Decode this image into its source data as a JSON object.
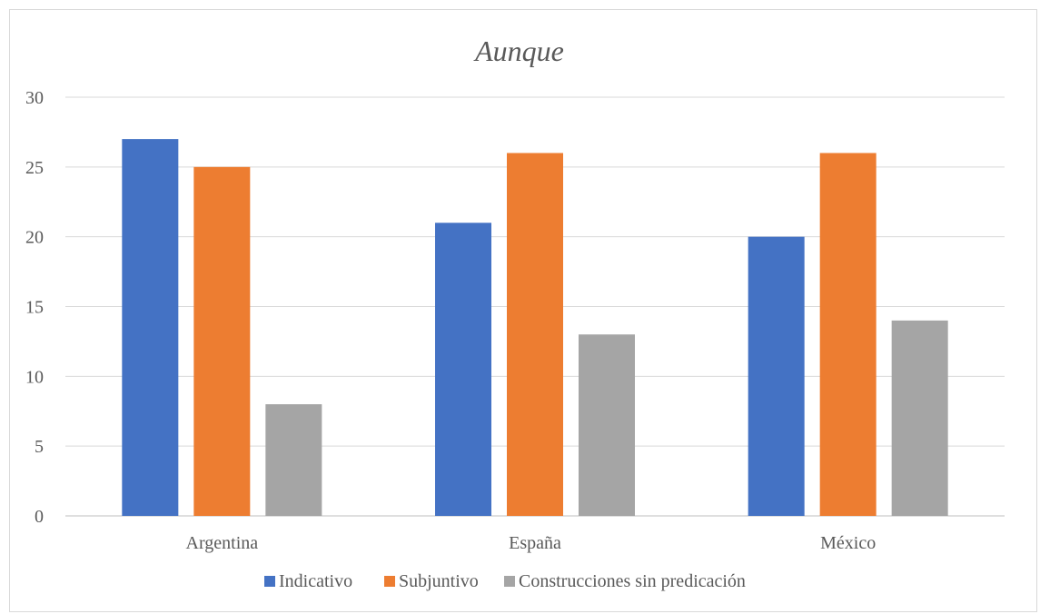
{
  "chart_data": {
    "type": "bar",
    "title": "Aunque",
    "categories": [
      "Argentina",
      "España",
      "México"
    ],
    "series": [
      {
        "name": "Indicativo",
        "color": "#4472c4",
        "values": [
          27,
          21,
          20
        ]
      },
      {
        "name": "Subjuntivo",
        "color": "#ed7d31",
        "values": [
          25,
          26,
          26
        ]
      },
      {
        "name": "Construcciones sin predicación",
        "color": "#a5a5a5",
        "values": [
          8,
          13,
          14
        ]
      }
    ],
    "ylim": [
      0,
      30
    ],
    "yticks": [
      0,
      5,
      10,
      15,
      20,
      25,
      30
    ],
    "grid": true,
    "legend_position": "bottom"
  }
}
